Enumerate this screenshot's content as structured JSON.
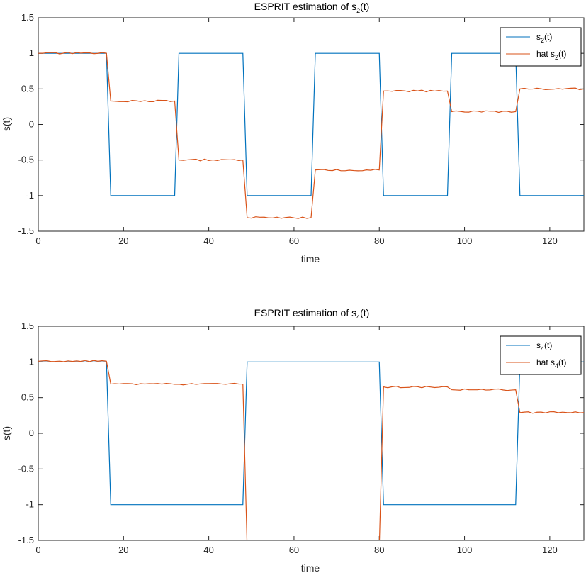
{
  "chart_data": [
    {
      "type": "line",
      "title_main": "ESPRIT estimation of s",
      "title_sub": "2",
      "title_tail": "(t)",
      "xlabel": "time",
      "ylabel": "s(t)",
      "xlim": [
        0,
        128
      ],
      "ylim": [
        -1.5,
        1.5
      ],
      "xticks": [
        0,
        20,
        40,
        60,
        80,
        100,
        120
      ],
      "yticks": [
        -1.5,
        -1,
        -0.5,
        0,
        0.5,
        1,
        1.5
      ],
      "xtick_labels": [
        "0",
        "20",
        "40",
        "60",
        "80",
        "100",
        "120"
      ],
      "ytick_labels": [
        "-1.5",
        "-1",
        "-0.5",
        "0",
        "0.5",
        "1",
        "1.5"
      ],
      "legend_placement": "top-right",
      "series": [
        {
          "name_main": "s",
          "name_sub": "2",
          "name_tail": "(t)",
          "color": "#0072BD",
          "segments": [
            [
              0,
              16,
              1
            ],
            [
              17,
              32,
              -1
            ],
            [
              33,
              48,
              1
            ],
            [
              49,
              64,
              -1
            ],
            [
              65,
              80,
              1
            ],
            [
              81,
              96,
              -1
            ],
            [
              97,
              112,
              1
            ],
            [
              113,
              128,
              -1
            ]
          ]
        },
        {
          "name_main": "hat s",
          "name_sub": "2",
          "name_tail": "(t)",
          "color": "#D95319",
          "segments": [
            [
              0,
              16,
              1.0
            ],
            [
              17,
              32,
              0.33
            ],
            [
              33,
              48,
              -0.5
            ],
            [
              49,
              64,
              -1.31
            ],
            [
              65,
              80,
              -0.64
            ],
            [
              81,
              96,
              0.47
            ],
            [
              97,
              112,
              0.18
            ],
            [
              113,
              128,
              0.5
            ]
          ]
        }
      ]
    },
    {
      "type": "line",
      "title_main": "ESPRIT estimation of s",
      "title_sub": "4",
      "title_tail": "(t)",
      "xlabel": "time",
      "ylabel": "s(t)",
      "xlim": [
        0,
        128
      ],
      "ylim": [
        -1.5,
        1.5
      ],
      "xticks": [
        0,
        20,
        40,
        60,
        80,
        100,
        120
      ],
      "yticks": [
        -1.5,
        -1,
        -0.5,
        0,
        0.5,
        1,
        1.5
      ],
      "xtick_labels": [
        "0",
        "20",
        "40",
        "60",
        "80",
        "100",
        "120"
      ],
      "ytick_labels": [
        "-1.5",
        "-1",
        "-0.5",
        "0",
        "0.5",
        "1",
        "1.5"
      ],
      "legend_placement": "top-right",
      "series": [
        {
          "name_main": "s",
          "name_sub": "4",
          "name_tail": "(t)",
          "color": "#0072BD",
          "segments": [
            [
              0,
              16,
              1
            ],
            [
              17,
              48,
              -1
            ],
            [
              49,
              80,
              1
            ],
            [
              81,
              112,
              -1
            ],
            [
              113,
              128,
              1
            ]
          ]
        },
        {
          "name_main": "hat s",
          "name_sub": "4",
          "name_tail": "(t)",
          "color": "#D95319",
          "segments": [
            [
              0,
              16,
              1.01
            ],
            [
              17,
              48,
              0.69
            ],
            [
              49,
              80,
              -1.6
            ],
            [
              81,
              96,
              0.65
            ],
            [
              97,
              112,
              0.61
            ],
            [
              113,
              128,
              0.29
            ]
          ]
        }
      ]
    }
  ]
}
